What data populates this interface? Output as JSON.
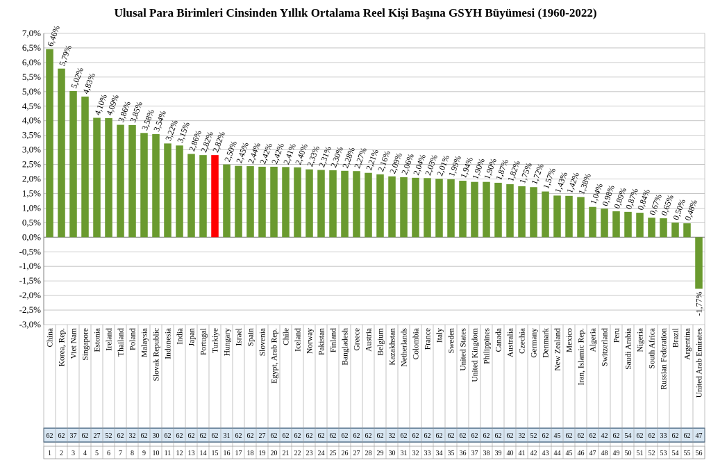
{
  "chart_data": {
    "type": "bar",
    "title": "Ulusal Para Birimleri Cinsinden Yıllık Ortalama Reel Kişi Başına GSYH Büyümesi (1960-2022)",
    "xlabel": "",
    "ylabel": "",
    "ylim": [
      -3.0,
      7.0
    ],
    "ytick_step": 0.5,
    "yticks": [
      "7,0%",
      "6,5%",
      "6,0%",
      "5,5%",
      "5,0%",
      "4,5%",
      "4,0%",
      "3,5%",
      "3,0%",
      "2,5%",
      "2,0%",
      "1,5%",
      "1,0%",
      "0,5%",
      "0,0%",
      "-0,5%",
      "-1,0%",
      "-1,5%",
      "-2,0%",
      "-2,5%",
      "-3,0%"
    ],
    "grid": true,
    "bar_color": "#6a9a2f",
    "highlight_color": "#ff0000",
    "highlight_index": 14,
    "year_row_color": "#d8e6f2",
    "categories": [
      "China",
      "Korea, Rep.",
      "Viet Nam",
      "Singapore",
      "Estonia",
      "Ireland",
      "Thailand",
      "Poland",
      "Malaysia",
      "Slovak Republic",
      "Indonesia",
      "India",
      "Japan",
      "Portugal",
      "Turkiye",
      "Hungary",
      "Israel",
      "Spain",
      "Slovenia",
      "Egypt, Arab Rep.",
      "Chile",
      "Iceland",
      "Norway",
      "Pakistan",
      "Finland",
      "Bangladesh",
      "Greece",
      "Austria",
      "Belgium",
      "Kazakhstan",
      "Netherlands",
      "Colombia",
      "France",
      "Italy",
      "Sweden",
      "United States",
      "United Kingdom",
      "Philippines",
      "Canada",
      "Australia",
      "Czechia",
      "Germany",
      "Denmark",
      "New Zealand",
      "Mexico",
      "Iran, Islamic Rep.",
      "Algeria",
      "Switzerland",
      "Peru",
      "Saudi Arabia",
      "Nigeria",
      "South Africa",
      "Russian Federation",
      "Brazil",
      "Argentina",
      "United Arab Emirates"
    ],
    "values": [
      6.46,
      5.79,
      5.02,
      4.83,
      4.1,
      4.09,
      3.86,
      3.85,
      3.58,
      3.54,
      3.22,
      3.15,
      2.86,
      2.82,
      2.82,
      2.5,
      2.45,
      2.44,
      2.42,
      2.42,
      2.41,
      2.4,
      2.33,
      2.31,
      2.3,
      2.28,
      2.27,
      2.21,
      2.16,
      2.09,
      2.06,
      2.04,
      2.03,
      2.01,
      1.99,
      1.94,
      1.9,
      1.9,
      1.87,
      1.82,
      1.75,
      1.72,
      1.57,
      1.43,
      1.42,
      1.38,
      1.04,
      0.98,
      0.89,
      0.87,
      0.84,
      0.67,
      0.65,
      0.5,
      0.48,
      -1.77
    ],
    "value_labels": [
      "6,46%",
      "5,79%",
      "5,02%",
      "4,83%",
      "4,10%",
      "4,09%",
      "3,86%",
      "3,85%",
      "3,58%",
      "3,54%",
      "3,22%",
      "3,15%",
      "2,86%",
      "2,82%",
      "2,82%",
      "2,50%",
      "2,45%",
      "2,44%",
      "2,42%",
      "2,42%",
      "2,41%",
      "2,40%",
      "2,33%",
      "2,31%",
      "2,30%",
      "2,28%",
      "2,27%",
      "2,21%",
      "2,16%",
      "2,09%",
      "2,06%",
      "2,04%",
      "2,03%",
      "2,01%",
      "1,99%",
      "1,94%",
      "1,90%",
      "1,90%",
      "1,87%",
      "1,82%",
      "1,75%",
      "1,72%",
      "1,57%",
      "1,43%",
      "1,42%",
      "1,38%",
      "1,04%",
      "0,98%",
      "0,89%",
      "0,87%",
      "0,84%",
      "0,67%",
      "0,65%",
      "0,50%",
      "0,48%",
      "-1,77%"
    ],
    "years": [
      62,
      62,
      37,
      62,
      27,
      52,
      62,
      32,
      62,
      30,
      62,
      62,
      62,
      62,
      62,
      31,
      62,
      62,
      27,
      62,
      62,
      62,
      62,
      62,
      62,
      62,
      62,
      62,
      62,
      32,
      62,
      62,
      62,
      62,
      62,
      62,
      62,
      62,
      62,
      62,
      32,
      52,
      62,
      45,
      62,
      62,
      62,
      42,
      62,
      54,
      62,
      62,
      33,
      62,
      62,
      47
    ],
    "ranks": [
      "1",
      "2",
      "3",
      "4",
      "5",
      "6",
      "7",
      "8",
      "9",
      "10",
      "11",
      "12",
      "13",
      "14",
      "15",
      "16",
      "17",
      "18",
      "19",
      "20",
      "21",
      "22",
      "23",
      "24",
      "25",
      "26",
      "27",
      "28",
      "29",
      "30",
      "31",
      "32",
      "33",
      "34",
      "35",
      "36",
      "37",
      "38",
      "39",
      "40",
      "41",
      "42",
      "43",
      "44",
      "45",
      "46",
      "47",
      "48",
      "49",
      "50",
      "51",
      "52",
      "53",
      "54",
      "55",
      "56"
    ]
  }
}
